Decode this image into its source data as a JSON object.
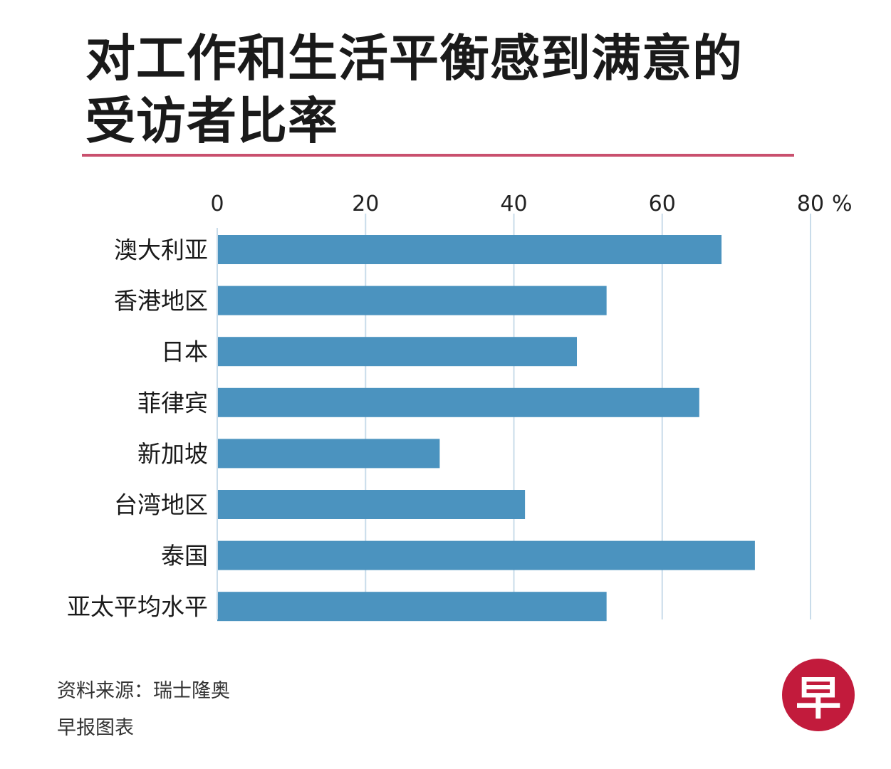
{
  "title": {
    "line1": "对工作和生活平衡感到满意的",
    "line2": "受访者比率"
  },
  "colors": {
    "bar": "#4b93bf",
    "grid": "#c9dcea",
    "rule": "#c9506e",
    "logo": "#c21b3c"
  },
  "chart_data": {
    "type": "bar",
    "orientation": "horizontal",
    "categories": [
      "澳大利亚",
      "香港地区",
      "日本",
      "菲律宾",
      "新加坡",
      "台湾地区",
      "泰国",
      "亚太平均水平"
    ],
    "values": [
      68,
      52.5,
      48.5,
      65,
      30,
      41.5,
      72.5,
      52.5
    ],
    "ticks": [
      "0",
      "20",
      "40",
      "60",
      "80"
    ],
    "unit": "%",
    "xlim": [
      0,
      80
    ],
    "grid": true
  },
  "footer": {
    "source": "资料来源：瑞士隆奥",
    "credit": "早报图表"
  },
  "logo": {
    "glyph": "早"
  }
}
